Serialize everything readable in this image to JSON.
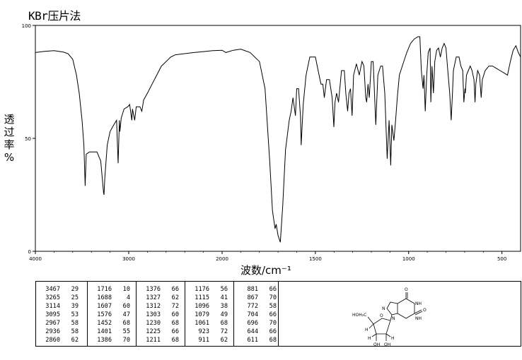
{
  "title": "KBr压片法",
  "chart_data": {
    "type": "line",
    "title": "KBr压片法",
    "xlabel": "波数/cm⁻¹",
    "ylabel": "透过率%",
    "ylabel_chars": [
      "透",
      "过",
      "率",
      "%"
    ],
    "xlim": [
      4000,
      400
    ],
    "ylim": [
      0,
      100
    ],
    "xticks": [
      4000,
      3000,
      2000,
      1500,
      1000,
      500
    ],
    "xtick_labels": [
      "4000",
      "3000",
      "2000",
      "1500",
      "1000",
      "500"
    ],
    "yticks": [
      0,
      50,
      100
    ],
    "ytick_labels": [
      "0",
      "50",
      "100"
    ],
    "grid": false,
    "series": [
      {
        "points": [
          [
            4000,
            88
          ],
          [
            3900,
            88.5
          ],
          [
            3800,
            88.8
          ],
          [
            3700,
            88.2
          ],
          [
            3650,
            87.5
          ],
          [
            3600,
            85
          ],
          [
            3560,
            78
          ],
          [
            3530,
            70
          ],
          [
            3500,
            58
          ],
          [
            3480,
            47
          ],
          [
            3467,
            29
          ],
          [
            3455,
            43
          ],
          [
            3420,
            44
          ],
          [
            3380,
            44
          ],
          [
            3340,
            44
          ],
          [
            3300,
            40
          ],
          [
            3270,
            26
          ],
          [
            3265,
            25
          ],
          [
            3255,
            33
          ],
          [
            3230,
            47
          ],
          [
            3200,
            53
          ],
          [
            3160,
            56
          ],
          [
            3130,
            58
          ],
          [
            3114,
            39
          ],
          [
            3100,
            58
          ],
          [
            3095,
            53
          ],
          [
            3080,
            59
          ],
          [
            3050,
            63
          ],
          [
            3010,
            64
          ],
          [
            2990,
            65
          ],
          [
            2967,
            58
          ],
          [
            2960,
            63
          ],
          [
            2936,
            58
          ],
          [
            2920,
            64
          ],
          [
            2880,
            64
          ],
          [
            2860,
            62
          ],
          [
            2840,
            67
          ],
          [
            2800,
            70
          ],
          [
            2750,
            74
          ],
          [
            2700,
            78
          ],
          [
            2650,
            82
          ],
          [
            2600,
            84
          ],
          [
            2550,
            86
          ],
          [
            2500,
            87
          ],
          [
            2400,
            87.5
          ],
          [
            2300,
            88
          ],
          [
            2200,
            88.4
          ],
          [
            2100,
            88.8
          ],
          [
            2000,
            89
          ],
          [
            1980,
            88
          ],
          [
            1940,
            89
          ],
          [
            1900,
            89.5
          ],
          [
            1850,
            88
          ],
          [
            1800,
            84
          ],
          [
            1770,
            72
          ],
          [
            1745,
            40
          ],
          [
            1730,
            18
          ],
          [
            1716,
            10
          ],
          [
            1710,
            12
          ],
          [
            1700,
            7
          ],
          [
            1688,
            4
          ],
          [
            1675,
            20
          ],
          [
            1660,
            45
          ],
          [
            1640,
            58
          ],
          [
            1630,
            62
          ],
          [
            1620,
            68
          ],
          [
            1607,
            60
          ],
          [
            1600,
            72
          ],
          [
            1590,
            72
          ],
          [
            1580,
            60
          ],
          [
            1576,
            47
          ],
          [
            1565,
            65
          ],
          [
            1550,
            78
          ],
          [
            1530,
            86
          ],
          [
            1500,
            86
          ],
          [
            1480,
            78
          ],
          [
            1470,
            74
          ],
          [
            1460,
            74
          ],
          [
            1452,
            68
          ],
          [
            1440,
            76
          ],
          [
            1425,
            76
          ],
          [
            1410,
            68
          ],
          [
            1401,
            55
          ],
          [
            1395,
            66
          ],
          [
            1386,
            70
          ],
          [
            1376,
            66
          ],
          [
            1360,
            80
          ],
          [
            1345,
            80
          ],
          [
            1337,
            70
          ],
          [
            1327,
            62
          ],
          [
            1320,
            70
          ],
          [
            1312,
            72
          ],
          [
            1303,
            60
          ],
          [
            1295,
            78
          ],
          [
            1280,
            83
          ],
          [
            1265,
            78
          ],
          [
            1250,
            84
          ],
          [
            1240,
            82
          ],
          [
            1230,
            68
          ],
          [
            1225,
            66
          ],
          [
            1218,
            74
          ],
          [
            1211,
            68
          ],
          [
            1200,
            84
          ],
          [
            1190,
            84
          ],
          [
            1176,
            56
          ],
          [
            1165,
            78
          ],
          [
            1150,
            82
          ],
          [
            1140,
            82
          ],
          [
            1128,
            70
          ],
          [
            1115,
            41
          ],
          [
            1105,
            58
          ],
          [
            1096,
            38
          ],
          [
            1090,
            56
          ],
          [
            1079,
            49
          ],
          [
            1070,
            58
          ],
          [
            1061,
            68
          ],
          [
            1050,
            78
          ],
          [
            1030,
            83
          ],
          [
            1010,
            88
          ],
          [
            990,
            92
          ],
          [
            970,
            94
          ],
          [
            950,
            95
          ],
          [
            940,
            95
          ],
          [
            932,
            80
          ],
          [
            923,
            72
          ],
          [
            918,
            78
          ],
          [
            911,
            62
          ],
          [
            903,
            78
          ],
          [
            895,
            88
          ],
          [
            885,
            90
          ],
          [
            881,
            66
          ],
          [
            875,
            82
          ],
          [
            867,
            70
          ],
          [
            860,
            84
          ],
          [
            850,
            89
          ],
          [
            840,
            90
          ],
          [
            830,
            86
          ],
          [
            820,
            90
          ],
          [
            810,
            92
          ],
          [
            800,
            90
          ],
          [
            790,
            80
          ],
          [
            780,
            70
          ],
          [
            772,
            58
          ],
          [
            765,
            70
          ],
          [
            760,
            80
          ],
          [
            745,
            86
          ],
          [
            730,
            86
          ],
          [
            720,
            82
          ],
          [
            710,
            80
          ],
          [
            704,
            66
          ],
          [
            698,
            72
          ],
          [
            696,
            70
          ],
          [
            690,
            78
          ],
          [
            680,
            80
          ],
          [
            670,
            82
          ],
          [
            660,
            80
          ],
          [
            650,
            76
          ],
          [
            644,
            66
          ],
          [
            640,
            74
          ],
          [
            630,
            80
          ],
          [
            620,
            78
          ],
          [
            611,
            68
          ],
          [
            605,
            76
          ],
          [
            590,
            80
          ],
          [
            570,
            82
          ],
          [
            550,
            82
          ],
          [
            530,
            81
          ],
          [
            510,
            80
          ],
          [
            490,
            79
          ],
          [
            470,
            78
          ],
          [
            455,
            84
          ],
          [
            440,
            89
          ],
          [
            425,
            91
          ],
          [
            412,
            88
          ],
          [
            400,
            86
          ]
        ]
      }
    ]
  },
  "peak_table": [
    [
      [
        "3467",
        "29"
      ],
      [
        "3265",
        "25"
      ],
      [
        "3114",
        "39"
      ],
      [
        "3095",
        "53"
      ],
      [
        "2967",
        "58"
      ],
      [
        "2936",
        "58"
      ],
      [
        "2860",
        "62"
      ]
    ],
    [
      [
        "1716",
        "10"
      ],
      [
        "1688",
        "4"
      ],
      [
        "1607",
        "60"
      ],
      [
        "1576",
        "47"
      ],
      [
        "1452",
        "68"
      ],
      [
        "1401",
        "55"
      ],
      [
        "1386",
        "70"
      ]
    ],
    [
      [
        "1376",
        "66"
      ],
      [
        "1327",
        "62"
      ],
      [
        "1312",
        "72"
      ],
      [
        "1303",
        "60"
      ],
      [
        "1230",
        "68"
      ],
      [
        "1225",
        "66"
      ],
      [
        "1211",
        "68"
      ]
    ],
    [
      [
        "1176",
        "56"
      ],
      [
        "1115",
        "41"
      ],
      [
        "1096",
        "38"
      ],
      [
        "1079",
        "49"
      ],
      [
        "1061",
        "68"
      ],
      [
        "923",
        "72"
      ],
      [
        "911",
        "62"
      ]
    ],
    [
      [
        "881",
        "66"
      ],
      [
        "867",
        "70"
      ],
      [
        "772",
        "58"
      ],
      [
        "704",
        "66"
      ],
      [
        "696",
        "70"
      ],
      [
        "644",
        "66"
      ],
      [
        "611",
        "68"
      ]
    ]
  ],
  "structure_labels": {
    "o_top": "O",
    "o_right": "O",
    "nh_upper": "NH",
    "nh_lower": "NH",
    "n_ring": "N",
    "n_link": "N",
    "hoh2c": "HOH₂C",
    "ring_o": "O",
    "h_left_upper": "H",
    "h_left_lower": "H",
    "h_right_lower": "H",
    "oh_left": "OH",
    "oh_right": "OH"
  }
}
